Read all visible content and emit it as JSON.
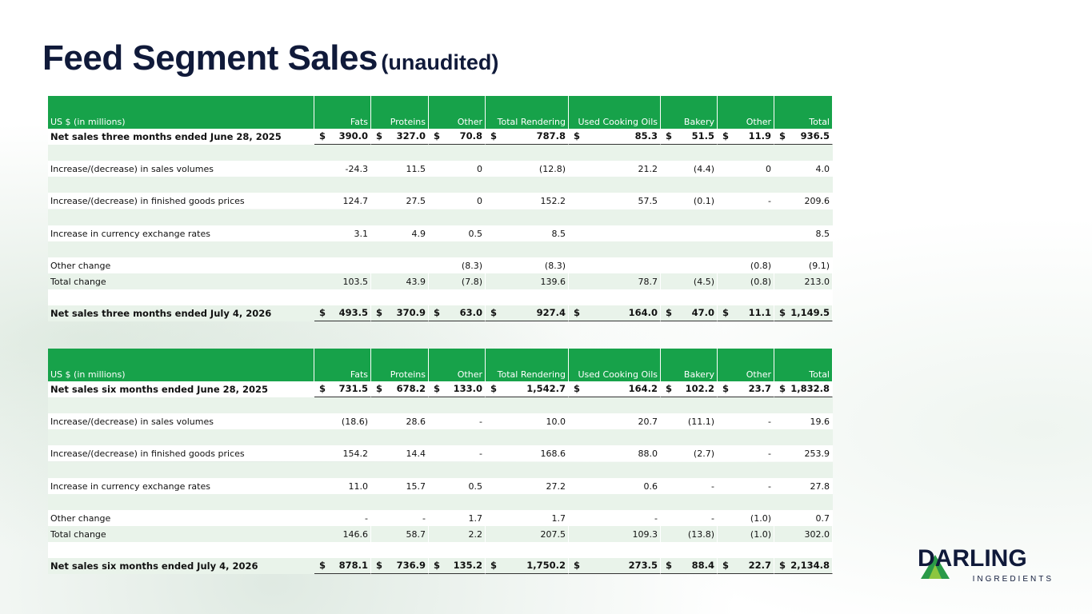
{
  "title": "Feed Segment Sales",
  "subtitle": "(unaudited)",
  "tables": [
    {
      "header": [
        "US $ (in millions)",
        "Fats",
        "Proteins",
        "Other",
        "Total Rendering",
        "Used Cooking Oils",
        "Bakery",
        "Other",
        "Total"
      ],
      "currency": "$",
      "rows": [
        {
          "label": "Net sales three months ended June 28, 2025",
          "cells": [
            "390.0",
            "327.0",
            "70.8",
            "787.8",
            "85.3",
            "51.5",
            "11.9",
            "936.5"
          ]
        },
        {
          "label": "Increase/(decrease) in sales volumes",
          "cells": [
            "-24.3",
            "11.5",
            "0",
            "(12.8)",
            "21.2",
            "(4.4)",
            "0",
            "4.0"
          ]
        },
        {
          "label": "Increase/(decrease) in finished goods prices",
          "cells": [
            "124.7",
            "27.5",
            "0",
            "152.2",
            "57.5",
            "(0.1)",
            "-",
            "209.6"
          ]
        },
        {
          "label": "Increase in currency exchange rates",
          "cells": [
            "3.1",
            "4.9",
            "0.5",
            "8.5",
            null,
            null,
            null,
            "8.5"
          ]
        },
        {
          "label": "Other change",
          "cells": [
            null,
            null,
            "(8.3)",
            "(8.3)",
            null,
            null,
            "(0.8)",
            "(9.1)"
          ]
        },
        {
          "label": "Total change",
          "cells": [
            "103.5",
            "43.9",
            "(7.8)",
            "139.6",
            "78.7",
            "(4.5)",
            "(0.8)",
            "213.0"
          ]
        },
        {
          "label": "Net sales three months ended July 4, 2026",
          "cells": [
            "493.5",
            "370.9",
            "63.0",
            "927.4",
            "164.0",
            "47.0",
            "11.1",
            "1,149.5"
          ]
        }
      ]
    },
    {
      "header": [
        "US $ (in millions)",
        "Fats",
        "Proteins",
        "Other",
        "Total Rendering",
        "Used Cooking Oils",
        "Bakery",
        "Other",
        "Total"
      ],
      "currency": "$",
      "rows": [
        {
          "label": "Net sales six months ended June 28, 2025",
          "cells": [
            "731.5",
            "678.2",
            "133.0",
            "1,542.7",
            "164.2",
            "102.2",
            "23.7",
            "1,832.8"
          ]
        },
        {
          "label": "Increase/(decrease) in sales volumes",
          "cells": [
            "(18.6)",
            "28.6",
            "-",
            "10.0",
            "20.7",
            "(11.1)",
            "-",
            "19.6"
          ]
        },
        {
          "label": "Increase/(decrease) in finished goods prices",
          "cells": [
            "154.2",
            "14.4",
            "-",
            "168.6",
            "88.0",
            "(2.7)",
            "-",
            "253.9"
          ]
        },
        {
          "label": "Increase in currency exchange rates",
          "cells": [
            "11.0",
            "15.7",
            "0.5",
            "27.2",
            "0.6",
            "-",
            "-",
            "27.8"
          ]
        },
        {
          "label": "Other change",
          "cells": [
            "-",
            "-",
            "1.7",
            "1.7",
            "-",
            "-",
            "(1.0)",
            "0.7"
          ]
        },
        {
          "label": "Total change",
          "cells": [
            "146.6",
            "58.7",
            "2.2",
            "207.5",
            "109.3",
            "(13.8)",
            "(1.0)",
            "302.0"
          ]
        },
        {
          "label": "Net sales six months ended July 4, 2026",
          "cells": [
            "878.1",
            "736.9",
            "135.2",
            "1,750.2",
            "273.5",
            "88.4",
            "22.7",
            "2,134.8"
          ]
        }
      ]
    }
  ],
  "logo": {
    "name": "DARLING",
    "tagline": "INGREDIENTS"
  }
}
